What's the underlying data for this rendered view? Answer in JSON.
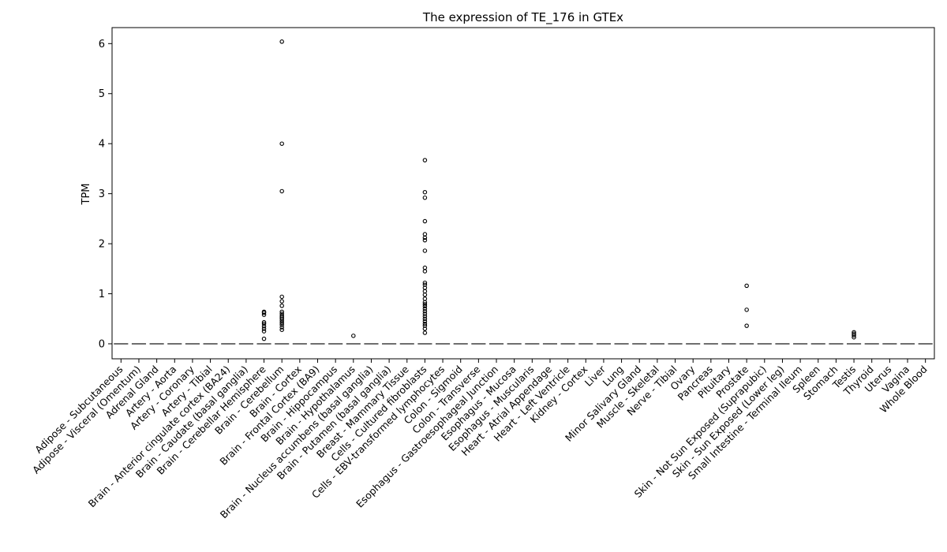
{
  "chart_data": {
    "type": "box",
    "title": "The expression of TE_176 in GTEx",
    "xlabel": "",
    "ylabel": "TPM",
    "ylim": [
      -0.3,
      6.32
    ],
    "yticks": [
      0,
      1,
      2,
      3,
      4,
      5,
      6
    ],
    "ytick_labels": [
      "0",
      "1",
      "2",
      "3",
      "4",
      "5",
      "6"
    ],
    "grid": false,
    "legend": "none",
    "median_color": "#6e6e6e",
    "categories": [
      "Adipose - Subcutaneous",
      "Adipose - Visceral (Omentum)",
      "Adrenal Gland",
      "Artery - Aorta",
      "Artery - Coronary",
      "Artery - Tibial",
      "Brain - Anterior cingulate cortex (BA24)",
      "Brain - Caudate (basal ganglia)",
      "Brain - Cerebellar Hemisphere",
      "Brain - Cerebellum",
      "Brain - Cortex",
      "Brain - Frontal Cortex (BA9)",
      "Brain - Hippocampus",
      "Brain - Hypothalamus",
      "Brain - Nucleus accumbens (basal ganglia)",
      "Brain - Putamen (basal ganglia)",
      "Breast - Mammary Tissue",
      "Cells - Cultured fibroblasts",
      "Cells - EBV-transformed lymphocytes",
      "Colon - Sigmoid",
      "Colon - Transverse",
      "Esophagus - Gastroesophageal Junction",
      "Esophagus - Mucosa",
      "Esophagus - Muscularis",
      "Heart - Atrial Appendage",
      "Heart - Left Ventricle",
      "Kidney - Cortex",
      "Liver",
      "Lung",
      "Minor Salivary Gland",
      "Muscle - Skeletal",
      "Nerve - Tibial",
      "Ovary",
      "Pancreas",
      "Pituitary",
      "Prostate",
      "Skin - Not Sun Exposed (Suprapubic)",
      "Skin - Sun Exposed (Lower leg)",
      "Small Intestine - Terminal Ileum",
      "Spleen",
      "Stomach",
      "Testis",
      "Thyroid",
      "Uterus",
      "Vagina",
      "Whole Blood"
    ],
    "median": [
      0,
      0,
      0,
      0,
      0,
      0,
      0,
      0,
      0,
      0,
      0,
      0,
      0,
      0,
      0,
      0,
      0,
      0,
      0,
      0,
      0,
      0,
      0,
      0,
      0,
      0,
      0,
      0,
      0,
      0,
      0,
      0,
      0,
      0,
      0,
      0,
      0,
      0,
      0,
      0,
      0,
      0,
      0,
      0,
      0,
      0
    ],
    "outliers": [
      {
        "category": "Brain - Cerebellar Hemisphere",
        "values": [
          0.1,
          0.25,
          0.3,
          0.35,
          0.4,
          0.43,
          0.58,
          0.62,
          0.64
        ]
      },
      {
        "category": "Brain - Cerebellum",
        "values": [
          0.28,
          0.33,
          0.38,
          0.42,
          0.46,
          0.5,
          0.53,
          0.56,
          0.6,
          0.64,
          0.76,
          0.85,
          0.94,
          3.05,
          4.0,
          6.04
        ]
      },
      {
        "category": "Brain - Hypothalamus",
        "values": [
          0.16
        ]
      },
      {
        "category": "Cells - Cultured fibroblasts",
        "values": [
          0.22,
          0.3,
          0.36,
          0.4,
          0.45,
          0.5,
          0.55,
          0.6,
          0.65,
          0.7,
          0.75,
          0.79,
          0.83,
          0.9,
          0.98,
          1.05,
          1.12,
          1.18,
          1.22,
          1.45,
          1.52,
          1.86,
          2.07,
          2.12,
          2.19,
          2.45,
          2.92,
          3.03,
          3.67
        ]
      },
      {
        "category": "Prostate",
        "values": [
          0.36,
          0.68,
          1.16
        ]
      },
      {
        "category": "Testis",
        "values": [
          0.13,
          0.17,
          0.2,
          0.23
        ]
      }
    ]
  }
}
